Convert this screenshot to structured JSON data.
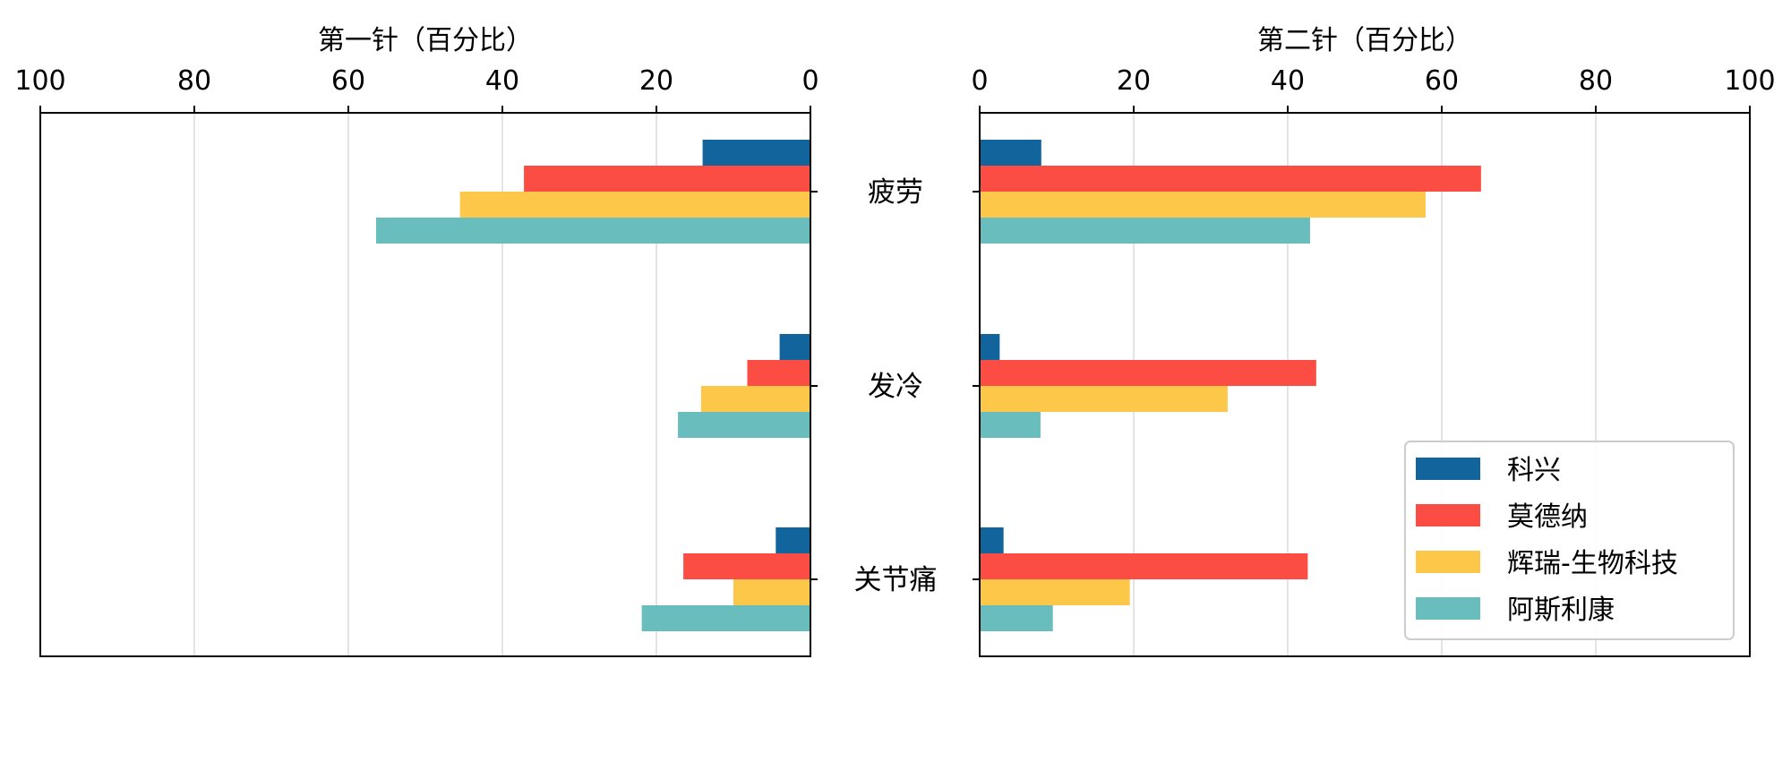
{
  "chart_data": [
    {
      "type": "bar",
      "orientation": "horizontal",
      "direction": "reversed",
      "title": "第一针（百分比）",
      "categories": [
        "疲劳",
        "发冷",
        "关节痛"
      ],
      "xlim": [
        100,
        0
      ],
      "ticks": [
        "100",
        "80",
        "60",
        "40",
        "20",
        "0"
      ],
      "tick_values": [
        100,
        80,
        60,
        40,
        20,
        0
      ],
      "grid": true,
      "series": [
        {
          "name": "科兴",
          "values": [
            14,
            4,
            4.5
          ]
        },
        {
          "name": "莫德纳",
          "values": [
            37.2,
            8.2,
            16.5
          ]
        },
        {
          "name": "辉瑞-生物科技",
          "values": [
            45.5,
            14.2,
            10
          ]
        },
        {
          "name": "阿斯利康",
          "values": [
            56.4,
            17.2,
            21.9
          ]
        }
      ]
    },
    {
      "type": "bar",
      "orientation": "horizontal",
      "direction": "normal",
      "title": "第二针（百分比）",
      "categories": [
        "疲劳",
        "发冷",
        "关节痛"
      ],
      "xlim": [
        0,
        100
      ],
      "ticks": [
        "0",
        "20",
        "40",
        "60",
        "80",
        "100"
      ],
      "tick_values": [
        0,
        20,
        40,
        60,
        80,
        100
      ],
      "grid": true,
      "legend_position": "bottom-right",
      "series": [
        {
          "name": "科兴",
          "values": [
            8,
            2.6,
            3.1
          ]
        },
        {
          "name": "莫德纳",
          "values": [
            65.1,
            43.7,
            42.6
          ]
        },
        {
          "name": "辉瑞-生物科技",
          "values": [
            57.9,
            32.2,
            19.5
          ]
        },
        {
          "name": "阿斯利康",
          "values": [
            42.9,
            7.9,
            9.5
          ]
        }
      ]
    }
  ],
  "series_colors": [
    "#12649c",
    "#fb4d43",
    "#fdc74a",
    "#69bdbd"
  ]
}
